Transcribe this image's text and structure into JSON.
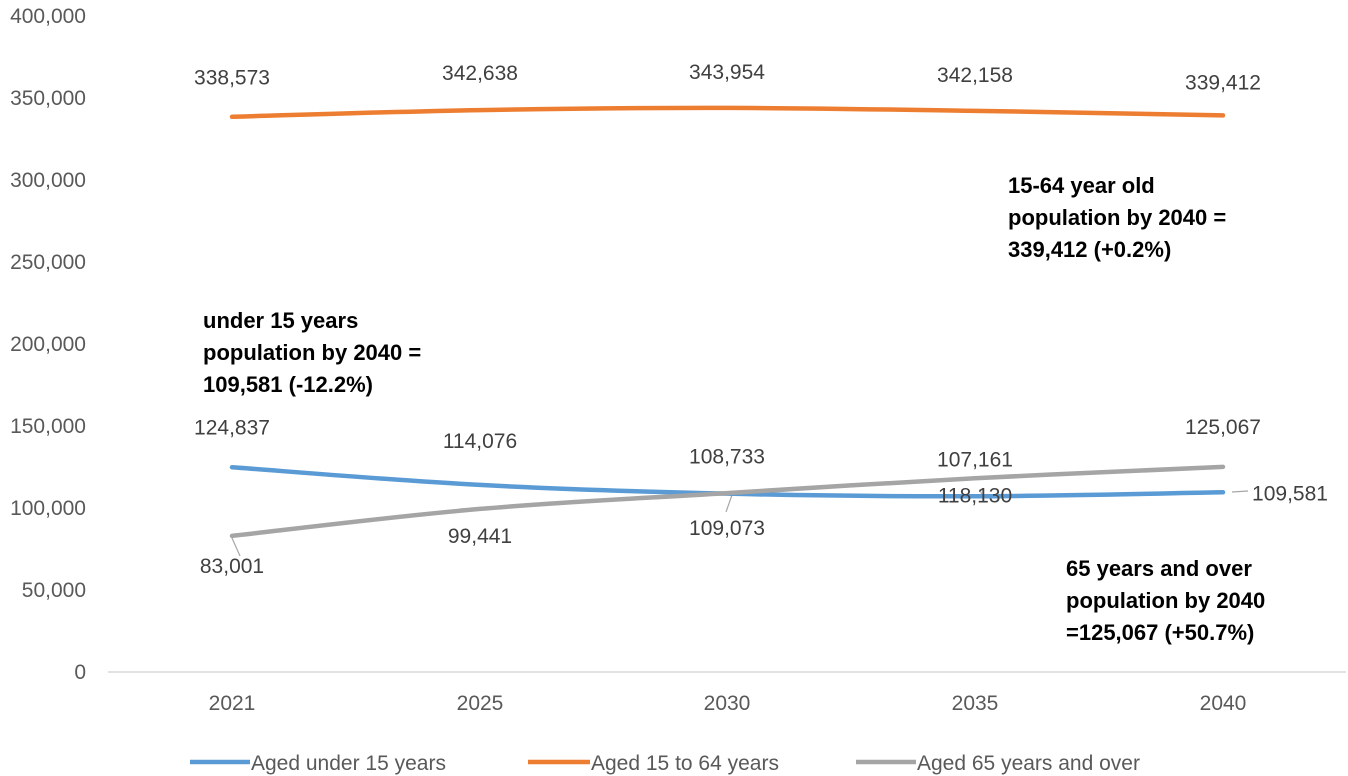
{
  "chart_data": {
    "type": "line",
    "categories": [
      "2021",
      "2025",
      "2030",
      "2035",
      "2040"
    ],
    "ylim": [
      0,
      400000
    ],
    "yticks": [
      0,
      50000,
      100000,
      150000,
      200000,
      250000,
      300000,
      350000,
      400000
    ],
    "ytick_labels": [
      "0",
      "50,000",
      "100,000",
      "150,000",
      "200,000",
      "250,000",
      "300,000",
      "350,000",
      "400,000"
    ],
    "grid": false,
    "legend_position": "bottom",
    "series": [
      {
        "name": "Aged under 15 years",
        "color": "#5B9BD5",
        "values": [
          124837,
          114076,
          108733,
          107161,
          109581
        ],
        "labels": [
          "124,837",
          "114,076",
          "108,733",
          "107,161",
          "109,581"
        ]
      },
      {
        "name": "Aged 15 to 64 years",
        "color": "#ED7D31",
        "values": [
          338573,
          342638,
          343954,
          342158,
          339412
        ],
        "labels": [
          "338,573",
          "342,638",
          "343,954",
          "342,158",
          "339,412"
        ]
      },
      {
        "name": "Aged 65 years and over",
        "color": "#A5A5A5",
        "values": [
          83001,
          99441,
          109073,
          118130,
          125067
        ],
        "labels": [
          "83,001",
          "99,441",
          "109,073",
          "118,130",
          "125,067"
        ]
      }
    ],
    "annotations": [
      {
        "lines": [
          "15-64 year old",
          "population by 2040 =",
          "339,412 (+0.2%)"
        ]
      },
      {
        "lines": [
          "under 15 years",
          "population by 2040 =",
          "109,581 (-12.2%)"
        ]
      },
      {
        "lines": [
          "65 years and over",
          "population by 2040",
          "=125,067 (+50.7%)"
        ]
      }
    ]
  }
}
